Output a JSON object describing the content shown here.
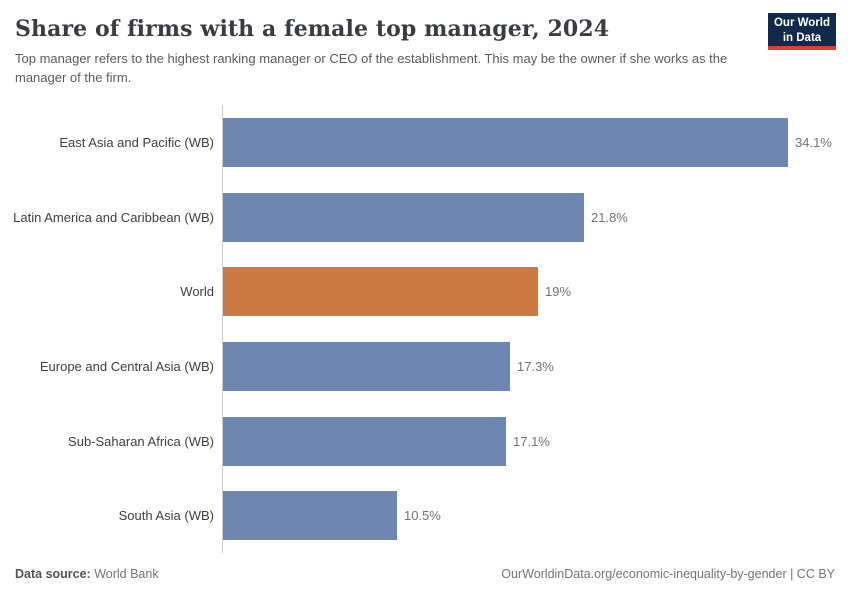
{
  "header": {
    "title": "Share of firms with a female top manager, 2024",
    "subtitle": "Top manager refers to the highest ranking manager or CEO of the establishment. This may be the owner if she works as the manager of the firm.",
    "logo": {
      "line1": "Our World",
      "line2": "in Data"
    }
  },
  "chart_data": {
    "type": "bar",
    "orientation": "horizontal",
    "title": "Share of firms with a female top manager, 2024",
    "xlabel": "",
    "ylabel": "",
    "xlim": [
      0,
      37.8
    ],
    "grid": false,
    "legend": "none",
    "categories": [
      "East Asia and Pacific (WB)",
      "Latin America and Caribbean (WB)",
      "World",
      "Europe and Central Asia (WB)",
      "Sub-Saharan Africa (WB)",
      "South Asia (WB)"
    ],
    "values": [
      34.1,
      21.8,
      19,
      17.3,
      17.1,
      10.5
    ],
    "value_labels": [
      "34.1%",
      "21.8%",
      "19%",
      "17.3%",
      "17.1%",
      "10.5%"
    ],
    "highlight_category": "World",
    "bar_color": "#6e87b1",
    "highlight_color": "#cb7a42"
  },
  "footer": {
    "datasource_label": "Data source:",
    "datasource_value": " World Bank",
    "link_text": "OurWorldinData.org/economic-inequality-by-gender | CC BY"
  },
  "colors": {
    "title": "#383d44",
    "subtitle": "#5b5b5b",
    "axis_line": "#cccccc",
    "category_label": "#404040",
    "value_label": "#737373",
    "logo_bg": "#10294c",
    "logo_red": "#d8402f"
  }
}
